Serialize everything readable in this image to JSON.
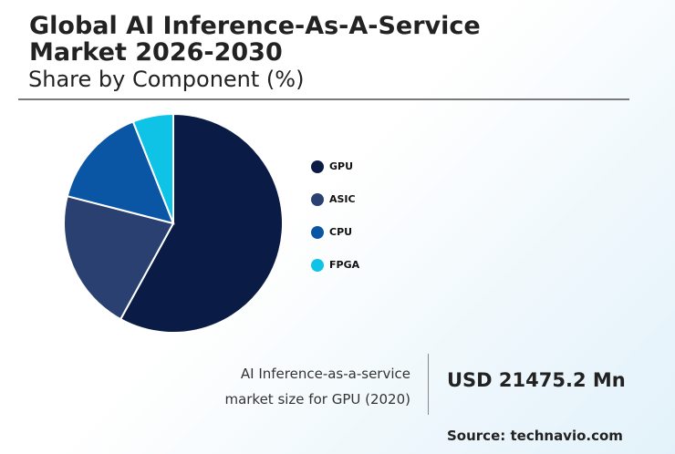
{
  "header": {
    "title": "Global AI Inference-As-A-Service Market 2026-2030",
    "subtitle": "Share by Component (%)"
  },
  "chart_data": {
    "type": "pie",
    "title": "Global AI Inference-As-A-Service Market 2026-2030",
    "subtitle": "Share by Component (%)",
    "legend_position": "right",
    "slices": [
      {
        "label": "GPU",
        "value": 58,
        "color": "#0a1c45"
      },
      {
        "label": "ASIC",
        "value": 21,
        "color": "#2a4070"
      },
      {
        "label": "CPU",
        "value": 15,
        "color": "#0b56a4"
      },
      {
        "label": "FPGA",
        "value": 6,
        "color": "#0fc3e6"
      }
    ]
  },
  "footer": {
    "caption_line1": "AI Inference-as-a-service",
    "caption_line2": "market size for GPU (2020)",
    "value": "USD 21475.2 Mn",
    "source": "Source: technavio.com"
  }
}
